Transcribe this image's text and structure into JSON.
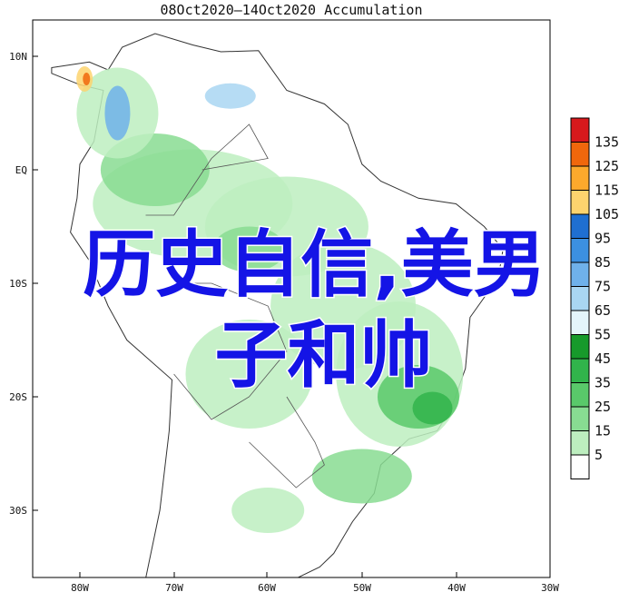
{
  "title": "08Oct2020—14Oct2020 Accumulation",
  "x_axis": {
    "labels": [
      "80W",
      "70W",
      "60W",
      "50W",
      "40W",
      "30W"
    ]
  },
  "y_axis": {
    "labels": [
      "10N",
      "EQ",
      "10S",
      "20S",
      "30S"
    ]
  },
  "colorbar": {
    "labels": [
      135,
      125,
      115,
      105,
      95,
      85,
      75,
      65,
      55,
      45,
      35,
      25,
      15,
      5
    ],
    "colors": [
      "#d7191c",
      "#f0670c",
      "#fca92c",
      "#fdd36e",
      "#1f6fd1",
      "#3c90e0",
      "#6fb1ea",
      "#a9d6f2",
      "#e4f5fb",
      "#179a2b",
      "#31b44b",
      "#59c96a",
      "#88dc92",
      "#bdeebf",
      "#ffffff"
    ]
  },
  "overlay_text": [
    "历史自信,美男",
    "子和帅"
  ]
}
